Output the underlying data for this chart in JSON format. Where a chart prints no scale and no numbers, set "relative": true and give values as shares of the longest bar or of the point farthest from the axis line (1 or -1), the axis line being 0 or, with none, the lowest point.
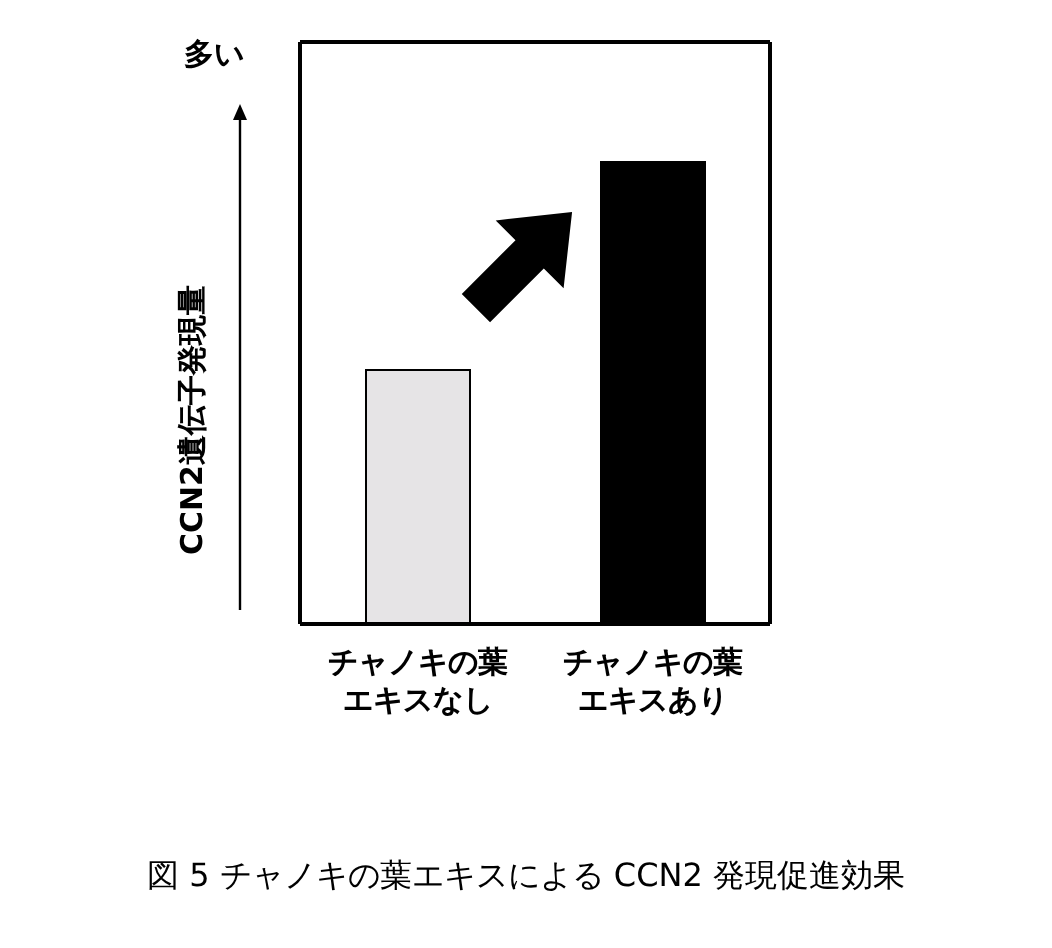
{
  "chart_data": {
    "type": "bar",
    "relative": true,
    "ylabel": "CCN2遺伝子発現量",
    "annotations": [
      "多い",
      "図 5 チャノキの葉エキスによる CCN2 発現促進効果"
    ],
    "categories": [
      "チャノキの葉エキスなし",
      "チャノキの葉エキスあり"
    ],
    "values": [
      0.55,
      1
    ],
    "colors": [
      "#e6e4e6",
      "#000000"
    ],
    "grid": false,
    "legend": false
  }
}
